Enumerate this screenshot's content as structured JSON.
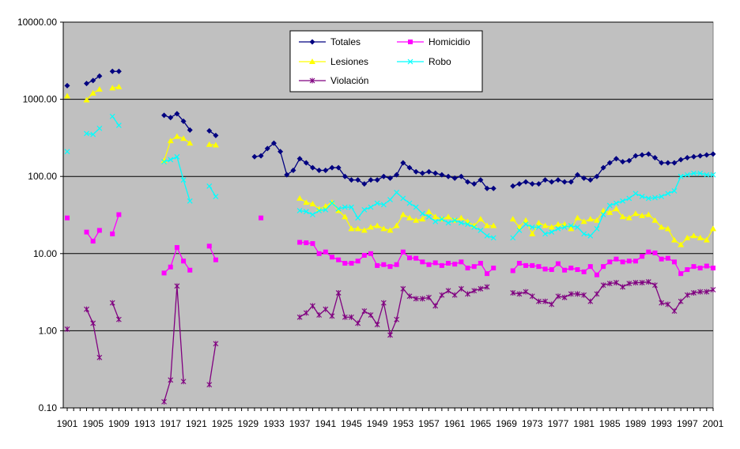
{
  "chart_data": {
    "type": "line",
    "title": "",
    "xlabel": "",
    "ylabel": "",
    "y_scale": "log",
    "ylim": [
      0.1,
      10000
    ],
    "xlim": [
      1901,
      2001
    ],
    "y_ticks": [
      "10000.00",
      "1000.00",
      "100.00",
      "10.00",
      "1.00",
      "0.10"
    ],
    "x_tick_labels": [
      "1901",
      "1905",
      "1909",
      "1913",
      "1917",
      "1921",
      "1925",
      "1929",
      "1933",
      "1937",
      "1941",
      "1945",
      "1949",
      "1953",
      "1957",
      "1961",
      "1965",
      "1969",
      "1973",
      "1977",
      "1981",
      "1985",
      "1989",
      "1993",
      "1997",
      "2001"
    ],
    "grid": "horizontal major gridlines",
    "plot_background": "#C0C0C0",
    "legend_position": "top-center",
    "x": [
      1901,
      1902,
      1903,
      1904,
      1905,
      1906,
      1907,
      1908,
      1909,
      1910,
      1911,
      1912,
      1913,
      1914,
      1915,
      1916,
      1917,
      1918,
      1919,
      1920,
      1921,
      1922,
      1923,
      1924,
      1925,
      1926,
      1927,
      1928,
      1929,
      1930,
      1931,
      1932,
      1933,
      1934,
      1935,
      1936,
      1937,
      1938,
      1939,
      1940,
      1941,
      1942,
      1943,
      1944,
      1945,
      1946,
      1947,
      1948,
      1949,
      1950,
      1951,
      1952,
      1953,
      1954,
      1955,
      1956,
      1957,
      1958,
      1959,
      1960,
      1961,
      1962,
      1963,
      1964,
      1965,
      1966,
      1967,
      1968,
      1969,
      1970,
      1971,
      1972,
      1973,
      1974,
      1975,
      1976,
      1977,
      1978,
      1979,
      1980,
      1981,
      1982,
      1983,
      1984,
      1985,
      1986,
      1987,
      1988,
      1989,
      1990,
      1991,
      1992,
      1993,
      1994,
      1995,
      1996,
      1997,
      1998,
      1999,
      2000,
      2001
    ],
    "series": [
      {
        "name": "Totales",
        "color": "#000080",
        "marker": "diamond",
        "values": [
          1500,
          null,
          null,
          1600,
          1750,
          2000,
          null,
          2300,
          2300,
          null,
          null,
          null,
          null,
          null,
          null,
          620,
          580,
          650,
          520,
          400,
          null,
          null,
          390,
          340,
          null,
          null,
          null,
          null,
          null,
          180,
          185,
          230,
          270,
          210,
          105,
          120,
          170,
          150,
          130,
          120,
          120,
          130,
          130,
          100,
          90,
          90,
          80,
          90,
          90,
          100,
          95,
          105,
          150,
          130,
          115,
          110,
          115,
          110,
          105,
          100,
          95,
          100,
          85,
          80,
          90,
          70,
          70,
          null,
          null,
          75,
          80,
          85,
          80,
          80,
          90,
          85,
          90,
          85,
          85,
          105,
          95,
          90,
          100,
          130,
          150,
          170,
          155,
          160,
          185,
          190,
          195,
          175,
          150,
          150,
          150,
          165,
          175,
          180,
          185,
          190,
          195
        ]
      },
      {
        "name": "Homicidio",
        "color": "#FF00FF",
        "marker": "square",
        "values": [
          29,
          null,
          null,
          19,
          14.5,
          20,
          null,
          18,
          32,
          null,
          null,
          null,
          null,
          null,
          null,
          5.6,
          6.7,
          12,
          8,
          6.1,
          null,
          null,
          12.5,
          8.3,
          null,
          null,
          null,
          null,
          null,
          null,
          29,
          null,
          null,
          null,
          null,
          null,
          14,
          13.8,
          13.5,
          10,
          10.5,
          9,
          8.3,
          7.5,
          7.5,
          8,
          9.5,
          10,
          7,
          7.2,
          6.8,
          7.2,
          10.5,
          8.8,
          8.7,
          7.8,
          7.2,
          7.6,
          7,
          7.5,
          7.3,
          7.8,
          6.5,
          6.8,
          7.5,
          5.5,
          6.5,
          null,
          null,
          6,
          7.5,
          7,
          7,
          6.8,
          6.3,
          6.2,
          7.4,
          6.1,
          6.5,
          6.2,
          5.8,
          6.8,
          5.3,
          6.8,
          7.8,
          8.5,
          7.8,
          8,
          8,
          9.2,
          10.5,
          10.2,
          8.5,
          8.7,
          7.8,
          5.5,
          6.2,
          6.8,
          6.5,
          6.9,
          6.5
        ]
      },
      {
        "name": "Lesiones",
        "color": "#FFFF00",
        "marker": "triangle",
        "values": [
          1100,
          null,
          null,
          980,
          1200,
          1350,
          null,
          1400,
          1450,
          null,
          null,
          null,
          null,
          null,
          null,
          160,
          290,
          330,
          310,
          270,
          null,
          null,
          260,
          255,
          null,
          null,
          null,
          null,
          null,
          null,
          null,
          null,
          null,
          null,
          null,
          null,
          52,
          46,
          44,
          38,
          41,
          46,
          36,
          30,
          21,
          21,
          20,
          22,
          23,
          21,
          20,
          23,
          32,
          29,
          27,
          28,
          35,
          30,
          28,
          30,
          27,
          29,
          26,
          23,
          28,
          23,
          23,
          null,
          null,
          28,
          22,
          27,
          18,
          25,
          23,
          22,
          24,
          24,
          21,
          29,
          26,
          28,
          27,
          36,
          34,
          38,
          30,
          29,
          33,
          31,
          32,
          27,
          22,
          21,
          15,
          13,
          16,
          17,
          16,
          15,
          21
        ]
      },
      {
        "name": "Robo",
        "color": "#00FFFF",
        "marker": "x",
        "values": [
          210,
          null,
          null,
          360,
          350,
          420,
          null,
          600,
          460,
          null,
          null,
          null,
          null,
          null,
          null,
          155,
          165,
          180,
          90,
          48,
          null,
          null,
          75,
          55,
          null,
          null,
          null,
          null,
          null,
          null,
          null,
          null,
          null,
          null,
          null,
          null,
          36,
          35,
          32,
          36,
          37,
          45,
          38,
          40,
          40,
          29,
          37,
          40,
          45,
          43,
          50,
          62,
          52,
          45,
          40,
          33,
          30,
          26,
          28,
          25,
          27,
          25,
          24,
          22,
          20,
          17,
          16,
          null,
          null,
          16,
          20,
          24,
          22,
          22,
          18,
          19,
          21,
          22,
          23,
          22,
          18,
          17,
          21,
          32,
          42,
          45,
          48,
          52,
          60,
          55,
          52,
          53,
          55,
          60,
          65,
          100,
          105,
          110,
          110,
          105,
          105
        ]
      },
      {
        "name": "Violación",
        "color": "#800080",
        "marker": "star",
        "values": [
          1.05,
          null,
          null,
          1.9,
          1.25,
          0.45,
          null,
          2.3,
          1.4,
          null,
          null,
          null,
          null,
          null,
          null,
          0.12,
          0.23,
          3.8,
          0.22,
          null,
          null,
          null,
          0.2,
          0.68,
          null,
          null,
          null,
          null,
          null,
          null,
          null,
          null,
          null,
          null,
          null,
          null,
          1.5,
          1.7,
          2.1,
          1.6,
          1.9,
          1.55,
          3.1,
          1.5,
          1.5,
          1.25,
          1.8,
          1.6,
          1.2,
          2.3,
          0.88,
          1.4,
          3.5,
          2.8,
          2.6,
          2.6,
          2.7,
          2.1,
          2.9,
          3.3,
          2.9,
          3.5,
          3,
          3.3,
          3.5,
          3.7,
          null,
          null,
          null,
          3.1,
          3,
          3.2,
          2.8,
          2.4,
          2.4,
          2.2,
          2.8,
          2.7,
          3,
          3,
          2.9,
          2.4,
          3,
          3.9,
          4.1,
          4.2,
          3.7,
          4.1,
          4.2,
          4.2,
          4.3,
          3.9,
          2.3,
          2.2,
          1.8,
          2.4,
          2.9,
          3.1,
          3.2,
          3.2,
          3.4
        ]
      }
    ]
  }
}
